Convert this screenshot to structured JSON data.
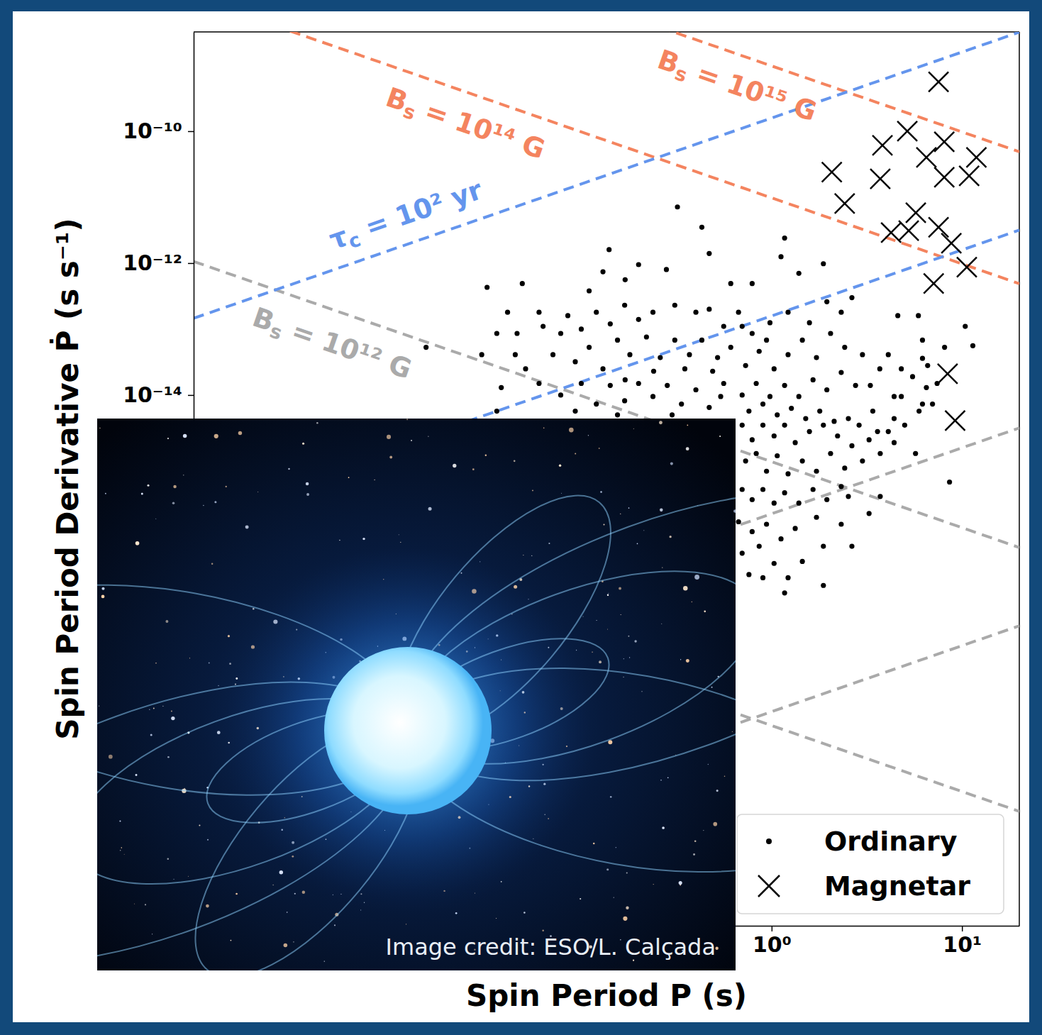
{
  "chart_data": {
    "type": "scatter",
    "x_label": "Spin Period P (s)",
    "y_label": "Spin Period Derivative Ṗ (s s⁻¹)",
    "log": true,
    "grid": false,
    "legend": "lower right",
    "xlim": [
      0.00092,
      20
    ],
    "ylim": [
      9e-23,
      3.2e-09
    ],
    "xticks": [
      {
        "value": 1,
        "label": "10⁰"
      },
      {
        "value": 10,
        "label": "10¹"
      }
    ],
    "yticks": [
      {
        "value": 1e-14,
        "label": "10⁻¹⁴"
      },
      {
        "value": 1e-12,
        "label": "10⁻¹²"
      },
      {
        "value": 1e-10,
        "label": "10⁻¹⁰"
      }
    ],
    "series": [
      {
        "name": "Ordinary",
        "marker": "circle",
        "color": "#000000",
        "x": [
          0.32,
          0.43,
          0.14,
          1.17,
          0.13,
          0.2,
          0.47,
          0.79,
          1.12,
          0.032,
          0.049,
          0.61,
          1.39,
          1.87,
          0.11,
          0.17,
          0.28,
          2.64,
          2.32,
          0.67,
          1.95,
          4.6,
          5.9,
          10.4,
          11.4,
          6.2,
          6.2,
          8.1,
          5.5,
          6.6,
          7.0,
          7.4,
          4.1,
          3.7,
          3.3,
          8.6,
          4.8,
          4.4,
          3.4,
          0.041,
          0.06,
          0.036,
          0.046,
          0.051,
          0.038,
          0.063,
          0.078,
          0.085,
          0.1,
          0.12,
          0.142,
          0.169,
          0.2,
          0.238,
          0.31,
          0.4,
          0.47,
          0.56,
          0.071,
          0.093,
          0.11,
          0.13,
          0.155,
          0.18,
          0.22,
          0.26,
          0.31,
          0.37,
          0.43,
          0.52,
          0.61,
          0.06,
          0.078,
          0.1,
          0.12,
          0.142,
          0.169,
          0.2,
          0.238,
          0.283,
          0.336,
          0.4,
          0.47,
          0.56,
          0.036,
          0.0153,
          0.03,
          0.045,
          0.49,
          0.35,
          0.24,
          0.17,
          0.54,
          0.3,
          0.155,
          0.093,
          0.7,
          0.79,
          0.9,
          1.03,
          1.17,
          1.33,
          1.58,
          1.87,
          2.22,
          2.64,
          0.73,
          0.83,
          0.94,
          1.07,
          1.22,
          1.45,
          1.72,
          2.04,
          2.42,
          3.0,
          3.72,
          0.7,
          0.79,
          0.9,
          1.03,
          1.17,
          1.39,
          1.65,
          1.95,
          2.32,
          0.67,
          0.79,
          0.94,
          1.12,
          1.33,
          1.72,
          0.7,
          0.86,
          1.03,
          1.22,
          1.17,
          1.87,
          2.64,
          3.25,
          0.76,
          0.9,
          1.45,
          2.88,
          3.6,
          4.4,
          4.8,
          5.95,
          6.5,
          4.1,
          3.25,
          2.53,
          2.13,
          1.79,
          1.51,
          1.27,
          1.07,
          0.9,
          0.76,
          0.7,
          0.83,
          0.98,
          1.17,
          1.39,
          1.65,
          1.95,
          2.32,
          2.76,
          0.73,
          0.86,
          1.03,
          1.22,
          1.45,
          1.72,
          2.04,
          2.42,
          3.0,
          0.79,
          0.98,
          1.22,
          1.58,
          0.7,
          0.94,
          4.4,
          5.7,
          6.2,
          5.0,
          2.53,
          3.72,
          2.32,
          1.87
        ],
        "values": [
          7.1e-12,
          3.5e-12,
          1.6e-12,
          2.4e-12,
          7.4e-13,
          9.5e-13,
          1.4e-12,
          4.9e-13,
          1.25e-12,
          4.3e-13,
          4.9e-13,
          4.9e-13,
          7e-13,
          9.8e-13,
          3.8e-13,
          5.6e-13,
          8e-13,
          3e-13,
          1.8e-13,
          1.8e-13,
          2.6e-13,
          1.6e-13,
          1.6e-13,
          1.1e-13,
          5.6e-14,
          6.8e-14,
          3.6e-14,
          5.3e-14,
          1.9e-14,
          2.8e-14,
          7.3e-15,
          1.5e-14,
          4.1e-14,
          2.5e-14,
          1.4e-14,
          4.8e-16,
          2.5e-14,
          9.5e-15,
          5.7e-15,
          1.8e-13,
          1.8e-13,
          8.6e-14,
          8.6e-14,
          2.5e-14,
          1.3e-14,
          1.1e-13,
          8.6e-14,
          1.6e-13,
          1e-13,
          1.8e-13,
          1.2e-13,
          2.3e-13,
          1.4e-13,
          1.8e-13,
          2.3e-13,
          1.8e-13,
          2e-13,
          1.1e-13,
          4.1e-14,
          3.2e-14,
          5.3e-14,
          2.5e-14,
          6.8e-14,
          4.1e-14,
          7.6e-14,
          3.7e-14,
          6.8e-14,
          4.1e-14,
          6.8e-14,
          3.7e-14,
          5.3e-14,
          1.5e-14,
          1e-14,
          1.5e-14,
          7.3e-15,
          1.4e-14,
          8.2e-15,
          1.5e-14,
          9.5e-15,
          1.4e-14,
          7.3e-15,
          1.2e-14,
          6.5e-15,
          1.5e-14,
          5.7e-15,
          5.3e-14,
          4.1e-14,
          4.1e-14,
          2.3e-14,
          2.5e-14,
          2.3e-14,
          1.7e-14,
          9.5e-15,
          5e-15,
          5e-15,
          5.7e-15,
          3.5e-15,
          2.1e-15,
          3.5e-15,
          2.4e-15,
          3.5e-15,
          1.9e-15,
          2.8e-15,
          3.5e-15,
          2.4e-15,
          1.7e-15,
          1e-15,
          1.3e-15,
          7e-16,
          1.2e-15,
          6.4e-16,
          1e-15,
          7e-16,
          1.3e-15,
          7.8e-16,
          1e-15,
          1.3e-15,
          3.7e-16,
          2.6e-16,
          3.7e-16,
          2.3e-16,
          3.3e-16,
          2.3e-16,
          3.7e-16,
          2.6e-16,
          4.1e-16,
          1.2e-16,
          8.5e-17,
          1.1e-16,
          6.6e-17,
          9.5e-17,
          1.4e-16,
          4e-17,
          5.1e-17,
          2.8e-17,
          1.7e-17,
          1e-17,
          1.3e-17,
          5.1e-17,
          1.6e-16,
          1.9e-17,
          1.7e-17,
          3e-17,
          3.5e-15,
          2.8e-15,
          4.4e-15,
          9.5e-15,
          5.7e-15,
          1.3e-14,
          2.8e-15,
          2.1e-15,
          4.4e-15,
          4e-15,
          5.7e-15,
          4.4e-15,
          6.3e-15,
          5e-15,
          7.3e-15,
          5.7e-15,
          1e-14,
          1.5e-14,
          9.5e-15,
          1.4e-14,
          9.5e-15,
          1.7e-14,
          1.2e-14,
          2.2e-14,
          1.4e-14,
          2.8e-14,
          4.6e-14,
          2.5e-14,
          4.1e-14,
          6.8e-14,
          3.7e-14,
          8.6e-14,
          5.3e-14,
          4.1e-14,
          8.6e-14,
          1.25e-13,
          1.8e-13,
          1.25e-13,
          1.1e-13,
          6.8e-14,
          1.9e-15,
          1.3e-15,
          7.3e-15,
          3.5e-15,
          2.9e-16,
          2.9e-16,
          1.1e-16,
          5.1e-17
        ]
      },
      {
        "name": "Magnetar",
        "marker": "x",
        "color": "#000000",
        "x": [
          7.53,
          5.16,
          3.82,
          8.07,
          6.5,
          11.9,
          2.07,
          3.72,
          8.07,
          10.9,
          2.42,
          5.72,
          4.24,
          5.25,
          7.53,
          8.79,
          7.1,
          10.6,
          8.4,
          9.2
        ],
        "values": [
          5.6e-10,
          1e-10,
          6.1e-11,
          6.9e-11,
          4e-11,
          4e-11,
          2.4e-11,
          1.9e-11,
          2e-11,
          2.1e-11,
          8e-12,
          5.8e-12,
          2.9e-12,
          3.1e-12,
          3.5e-12,
          2e-12,
          4.9e-13,
          8.7e-13,
          2.1e-14,
          4.1e-15
        ]
      }
    ],
    "reference_lines": [
      {
        "label": "Bs = 10¹⁵ G",
        "color": "#f4845f",
        "line_style": "dashed",
        "x": [
          0.00092,
          20
        ],
        "values": [
          1.06e-06,
          4.88e-11
        ]
      },
      {
        "label": "Bs = 10¹⁴ G",
        "color": "#f4845f",
        "line_style": "dashed",
        "x": [
          0.00092,
          20
        ],
        "values": [
          1.06e-08,
          4.88e-13
        ]
      },
      {
        "label": "Bs = 10¹² G",
        "color": "#aaaaaa",
        "line_style": "dashed",
        "x": [
          0.00092,
          20
        ],
        "values": [
          1.06e-12,
          4.88e-17
        ]
      },
      {
        "color": "#aaaaaa",
        "line_style": "dashed",
        "x": [
          0.00092,
          20
        ],
        "values": [
          1.06e-16,
          4.88e-21
        ]
      },
      {
        "label": "τc = 10² yr",
        "color": "#6495ed",
        "line_style": "dashed",
        "x": [
          0.00092,
          20
        ],
        "values": [
          1.458e-13,
          3.169e-09
        ]
      },
      {
        "color": "#6495ed",
        "line_style": "dashed",
        "x": [
          0.00092,
          20
        ],
        "values": [
          1.458e-16,
          3.169e-12
        ]
      },
      {
        "color": "#aaaaaa",
        "line_style": "dashed",
        "x": [
          0.00092,
          20
        ],
        "values": [
          1.458e-19,
          3.169e-15
        ]
      },
      {
        "color": "#aaaaaa",
        "line_style": "dashed",
        "x": [
          0.00092,
          20
        ],
        "values": [
          1.458e-22,
          3.169e-18
        ]
      }
    ],
    "annotations": [
      "Image credit: ESO/L. Calçada"
    ]
  }
}
